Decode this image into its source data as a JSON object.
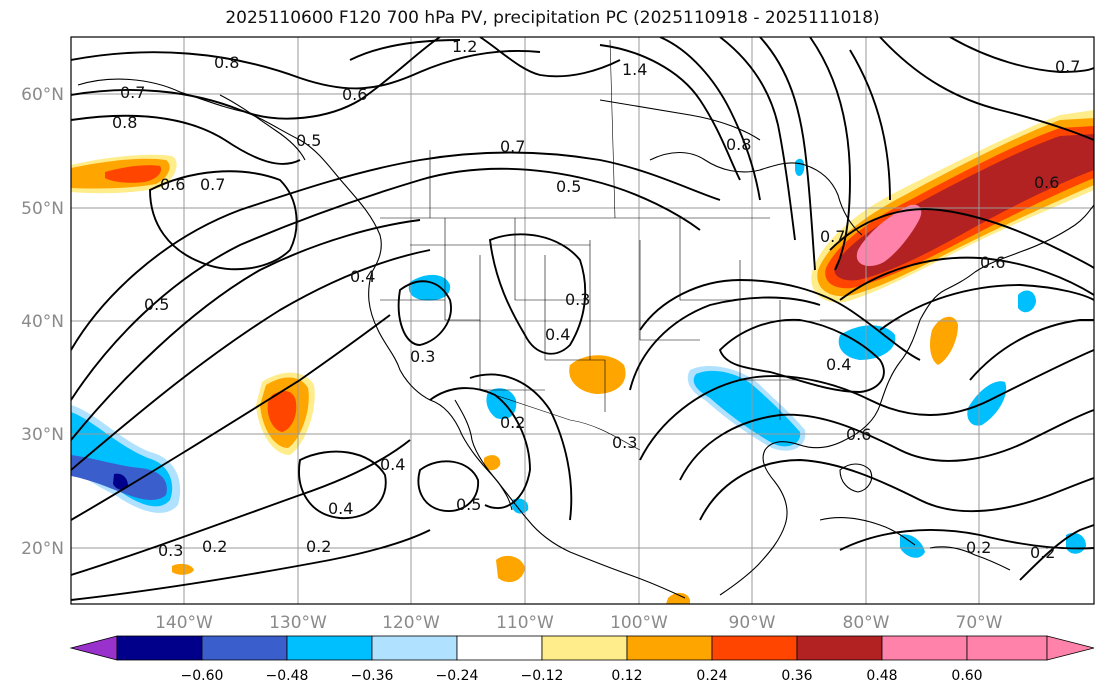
{
  "title": "2025110600 F120 700 hPa PV, precipitation PC (2025110918 - 2025111018)",
  "map": {
    "lat_labels": [
      "60°N",
      "50°N",
      "40°N",
      "30°N",
      "20°N"
    ],
    "lon_labels": [
      "140°W",
      "130°W",
      "120°W",
      "110°W",
      "100°W",
      "90°W",
      "80°W",
      "70°W"
    ],
    "pv_contour_labels": [
      "0.8",
      "0.7",
      "0.8",
      "0.6",
      "0.5",
      "0.6",
      "1.2",
      "1.4",
      "0.7",
      "0.8",
      "0.5",
      "0.7",
      "0.5",
      "0.4",
      "0.3",
      "0.4",
      "0.3",
      "0.2",
      "0.3",
      "0.4",
      "0.4",
      "0.5",
      "0.3",
      "0.2",
      "0.2",
      "0.4",
      "0.6",
      "0.6",
      "0.6",
      "0.7",
      "0.2",
      "0.2",
      "0.7"
    ]
  },
  "colorbar": {
    "tick_labels": [
      "−0.60",
      "−0.48",
      "−0.36",
      "−0.24",
      "−0.12",
      "0.12",
      "0.24",
      "0.36",
      "0.48",
      "0.60"
    ],
    "colors": [
      "#9932cc",
      "#00008b",
      "#3a5fcd",
      "#00bfff",
      "#b0e2ff",
      "#ffffff",
      "#ffec8b",
      "#ffa500",
      "#ff4500",
      "#b22222",
      "#ff82ab"
    ]
  }
}
